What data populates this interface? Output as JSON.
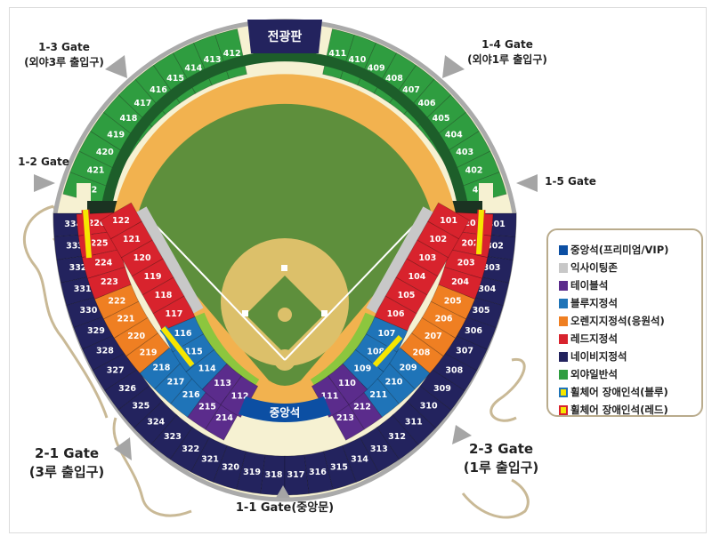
{
  "colors": {
    "green": "#2f9d40",
    "navy": "#23235e",
    "red": "#d8232d",
    "orange": "#ef7f22",
    "blue": "#1f74b8",
    "purple": "#5b2c8c",
    "central": "#0c4fa3",
    "exciting": "#c8c8c8",
    "yellow": "#f6e600",
    "grass": "#5e8f3c",
    "track": "#f2b24f",
    "dirt": "#dcc06a",
    "cream": "#f6f1d2"
  },
  "scoreboard": {
    "label": "전광판"
  },
  "central_seat": {
    "label": "중앙석"
  },
  "gates": {
    "g13": {
      "name": "1-3 Gate",
      "desc": "(외야3루 출입구)"
    },
    "g14": {
      "name": "1-4 Gate",
      "desc": "(외야1루 출입구)"
    },
    "g12": {
      "name": "1-2 Gate"
    },
    "g15": {
      "name": "1-5 Gate"
    },
    "g21": {
      "name": "2-1 Gate",
      "desc": "(3루 출입구)"
    },
    "g23": {
      "name": "2-3 Gate",
      "desc": "(1루 출입구)"
    },
    "g11": {
      "name": "1-1 Gate(중앙문)"
    }
  },
  "sections": {
    "outfield_left": [
      "422",
      "421",
      "420",
      "419",
      "418",
      "417",
      "416",
      "415",
      "414",
      "413",
      "412"
    ],
    "outfield_right": [
      "411",
      "410",
      "409",
      "408",
      "407",
      "406",
      "405",
      "404",
      "403",
      "402",
      "401"
    ],
    "upper": [
      "334",
      "333",
      "332",
      "331",
      "330",
      "329",
      "328",
      "327",
      "326",
      "325",
      "324",
      "323",
      "322",
      "321",
      "320",
      "319",
      "318",
      "317",
      "316",
      "315",
      "314",
      "313",
      "312",
      "311",
      "310",
      "309",
      "308",
      "307",
      "306",
      "305",
      "304",
      "303",
      "302",
      "301"
    ],
    "middle_left": [
      {
        "n": "226",
        "z": "red"
      },
      {
        "n": "225",
        "z": "red"
      },
      {
        "n": "224",
        "z": "red"
      },
      {
        "n": "223",
        "z": "red"
      },
      {
        "n": "222",
        "z": "orange"
      },
      {
        "n": "221",
        "z": "orange"
      },
      {
        "n": "220",
        "z": "orange"
      },
      {
        "n": "219",
        "z": "orange"
      },
      {
        "n": "218",
        "z": "blue"
      },
      {
        "n": "217",
        "z": "blue"
      },
      {
        "n": "216",
        "z": "blue"
      },
      {
        "n": "215",
        "z": "purple"
      },
      {
        "n": "214",
        "z": "purple"
      }
    ],
    "middle_right": [
      {
        "n": "201",
        "z": "red"
      },
      {
        "n": "202",
        "z": "red"
      },
      {
        "n": "203",
        "z": "red"
      },
      {
        "n": "204",
        "z": "red"
      },
      {
        "n": "205",
        "z": "orange"
      },
      {
        "n": "206",
        "z": "orange"
      },
      {
        "n": "207",
        "z": "orange"
      },
      {
        "n": "208",
        "z": "orange"
      },
      {
        "n": "209",
        "z": "blue"
      },
      {
        "n": "210",
        "z": "blue"
      },
      {
        "n": "211",
        "z": "blue"
      },
      {
        "n": "212",
        "z": "purple"
      },
      {
        "n": "213",
        "z": "purple"
      }
    ],
    "lower_left": [
      {
        "n": "122",
        "z": "red"
      },
      {
        "n": "121",
        "z": "red"
      },
      {
        "n": "120",
        "z": "red"
      },
      {
        "n": "119",
        "z": "red"
      },
      {
        "n": "118",
        "z": "red"
      },
      {
        "n": "117",
        "z": "red"
      },
      {
        "n": "116",
        "z": "blue"
      },
      {
        "n": "115",
        "z": "blue"
      },
      {
        "n": "114",
        "z": "blue"
      },
      {
        "n": "113",
        "z": "purple"
      },
      {
        "n": "112",
        "z": "purple"
      }
    ],
    "lower_right": [
      {
        "n": "101",
        "z": "red"
      },
      {
        "n": "102",
        "z": "red"
      },
      {
        "n": "103",
        "z": "red"
      },
      {
        "n": "104",
        "z": "red"
      },
      {
        "n": "105",
        "z": "red"
      },
      {
        "n": "106",
        "z": "red"
      },
      {
        "n": "107",
        "z": "blue"
      },
      {
        "n": "108",
        "z": "blue"
      },
      {
        "n": "109",
        "z": "blue"
      },
      {
        "n": "110",
        "z": "purple"
      },
      {
        "n": "111",
        "z": "purple"
      }
    ]
  },
  "legend": [
    {
      "label": "중앙석(프리미엄/VIP)",
      "color": "#0c4fa3",
      "border": "#0c4fa3"
    },
    {
      "label": "익사이팅존",
      "color": "#c8c8c8",
      "border": "#c8c8c8"
    },
    {
      "label": "테이블석",
      "color": "#5b2c8c",
      "border": "#5b2c8c"
    },
    {
      "label": "블루지정석",
      "color": "#1f74b8",
      "border": "#1f74b8"
    },
    {
      "label": "오렌지지정석(응원석)",
      "color": "#ef7f22",
      "border": "#ef7f22"
    },
    {
      "label": "레드지정석",
      "color": "#d8232d",
      "border": "#d8232d"
    },
    {
      "label": "네이비지정석",
      "color": "#23235e",
      "border": "#23235e"
    },
    {
      "label": "외야일반석",
      "color": "#2f9d40",
      "border": "#2f9d40"
    },
    {
      "label": "휠체어 장애인석(블루)",
      "color": "#f6e600",
      "border": "#1f74b8"
    },
    {
      "label": "휠체어 장애인석(레드)",
      "color": "#f6e600",
      "border": "#d8232d"
    }
  ]
}
